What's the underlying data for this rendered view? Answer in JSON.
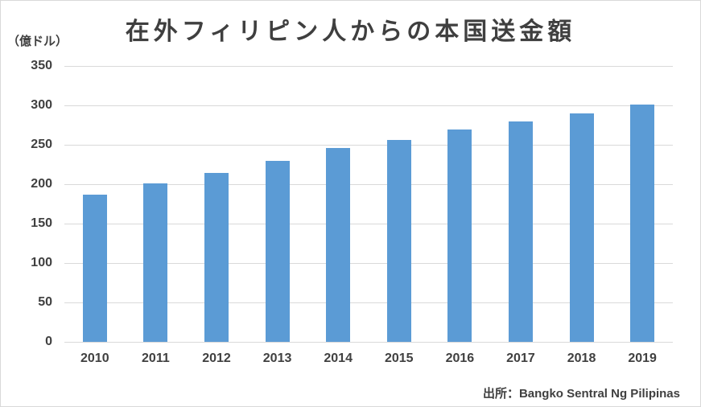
{
  "header": {
    "title": "在外フィリピン人からの本国送金額",
    "unit_label": "（億ドル）"
  },
  "footer": {
    "source": "出所：Bangko Sentral Ng Pilipinas"
  },
  "chart_data": {
    "type": "bar",
    "title": "在外フィリピン人からの本国送金額",
    "categories": [
      "2010",
      "2011",
      "2012",
      "2013",
      "2014",
      "2015",
      "2016",
      "2017",
      "2018",
      "2019"
    ],
    "values": [
      187,
      201,
      214,
      230,
      246,
      256,
      269,
      280,
      290,
      301
    ],
    "xlabel": "",
    "ylabel": "（億ドル）",
    "ylim": [
      0,
      350
    ],
    "ytick_step": 50,
    "grid": true,
    "legend": "none",
    "source": "出所：Bangko Sentral Ng Pilipinas"
  },
  "colors": {
    "bar": "#5B9BD5",
    "grid": "#D9D9D9",
    "axis_text": "#404040",
    "title_text": "#3F3F3F",
    "border": "#D9D9D9",
    "background": "#FFFFFF"
  }
}
